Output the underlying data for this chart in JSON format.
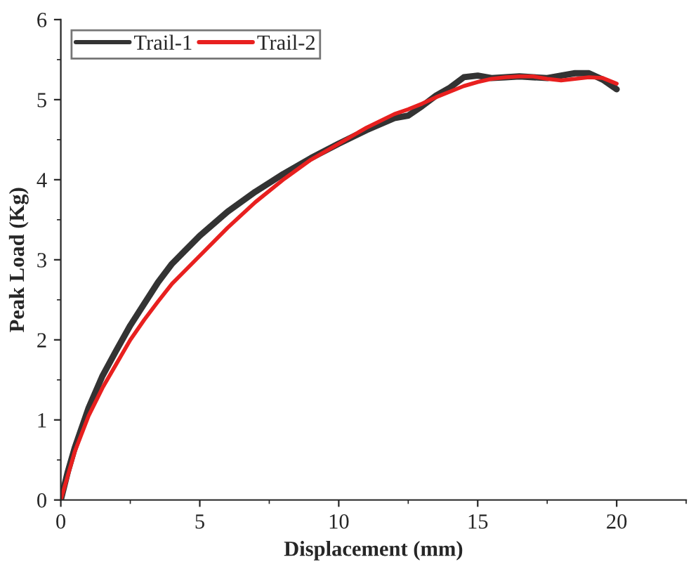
{
  "chart_data": {
    "type": "line",
    "xlabel": "Displacement (mm)",
    "ylabel": "Peak Load (Kg)",
    "xlim": [
      0,
      22.5
    ],
    "ylim": [
      0,
      6
    ],
    "xticks": [
      0,
      5,
      10,
      15,
      20
    ],
    "yticks": [
      0,
      1,
      2,
      3,
      4,
      5,
      6
    ],
    "legend": "top left",
    "grid": false,
    "marker": "none",
    "line_style": "solid",
    "series": [
      {
        "name": "Trail-1",
        "color": "#333333",
        "x": [
          0,
          0.25,
          0.5,
          1,
          1.5,
          2,
          2.5,
          3,
          3.5,
          4,
          5,
          6,
          7,
          8,
          9,
          10,
          11,
          12,
          12.5,
          13,
          13.5,
          14,
          14.5,
          15,
          15.5,
          16,
          16.5,
          17,
          17.5,
          18,
          18.5,
          19,
          19.5,
          20
        ],
        "values": [
          0,
          0.35,
          0.65,
          1.15,
          1.55,
          1.87,
          2.18,
          2.45,
          2.72,
          2.95,
          3.3,
          3.6,
          3.85,
          4.07,
          4.27,
          4.45,
          4.62,
          4.77,
          4.8,
          4.92,
          5.05,
          5.15,
          5.28,
          5.3,
          5.27,
          5.28,
          5.29,
          5.28,
          5.27,
          5.3,
          5.33,
          5.33,
          5.25,
          5.13
        ]
      },
      {
        "name": "Trail-2",
        "color": "#e8201f",
        "x": [
          0,
          0.25,
          0.5,
          1,
          1.5,
          2,
          2.5,
          3,
          3.5,
          4,
          5,
          6,
          7,
          8,
          9,
          10,
          11,
          12,
          12.5,
          13,
          13.5,
          14,
          14.5,
          15,
          15.5,
          16,
          16.5,
          17,
          17.5,
          18,
          18.5,
          19,
          19.5,
          20
        ],
        "values": [
          0,
          0.3,
          0.6,
          1.05,
          1.4,
          1.7,
          2.0,
          2.25,
          2.48,
          2.7,
          3.05,
          3.4,
          3.72,
          4.0,
          4.25,
          4.45,
          4.65,
          4.82,
          4.88,
          4.95,
          5.03,
          5.1,
          5.17,
          5.22,
          5.26,
          5.28,
          5.29,
          5.29,
          5.26,
          5.24,
          5.26,
          5.28,
          5.27,
          5.2
        ]
      }
    ]
  }
}
